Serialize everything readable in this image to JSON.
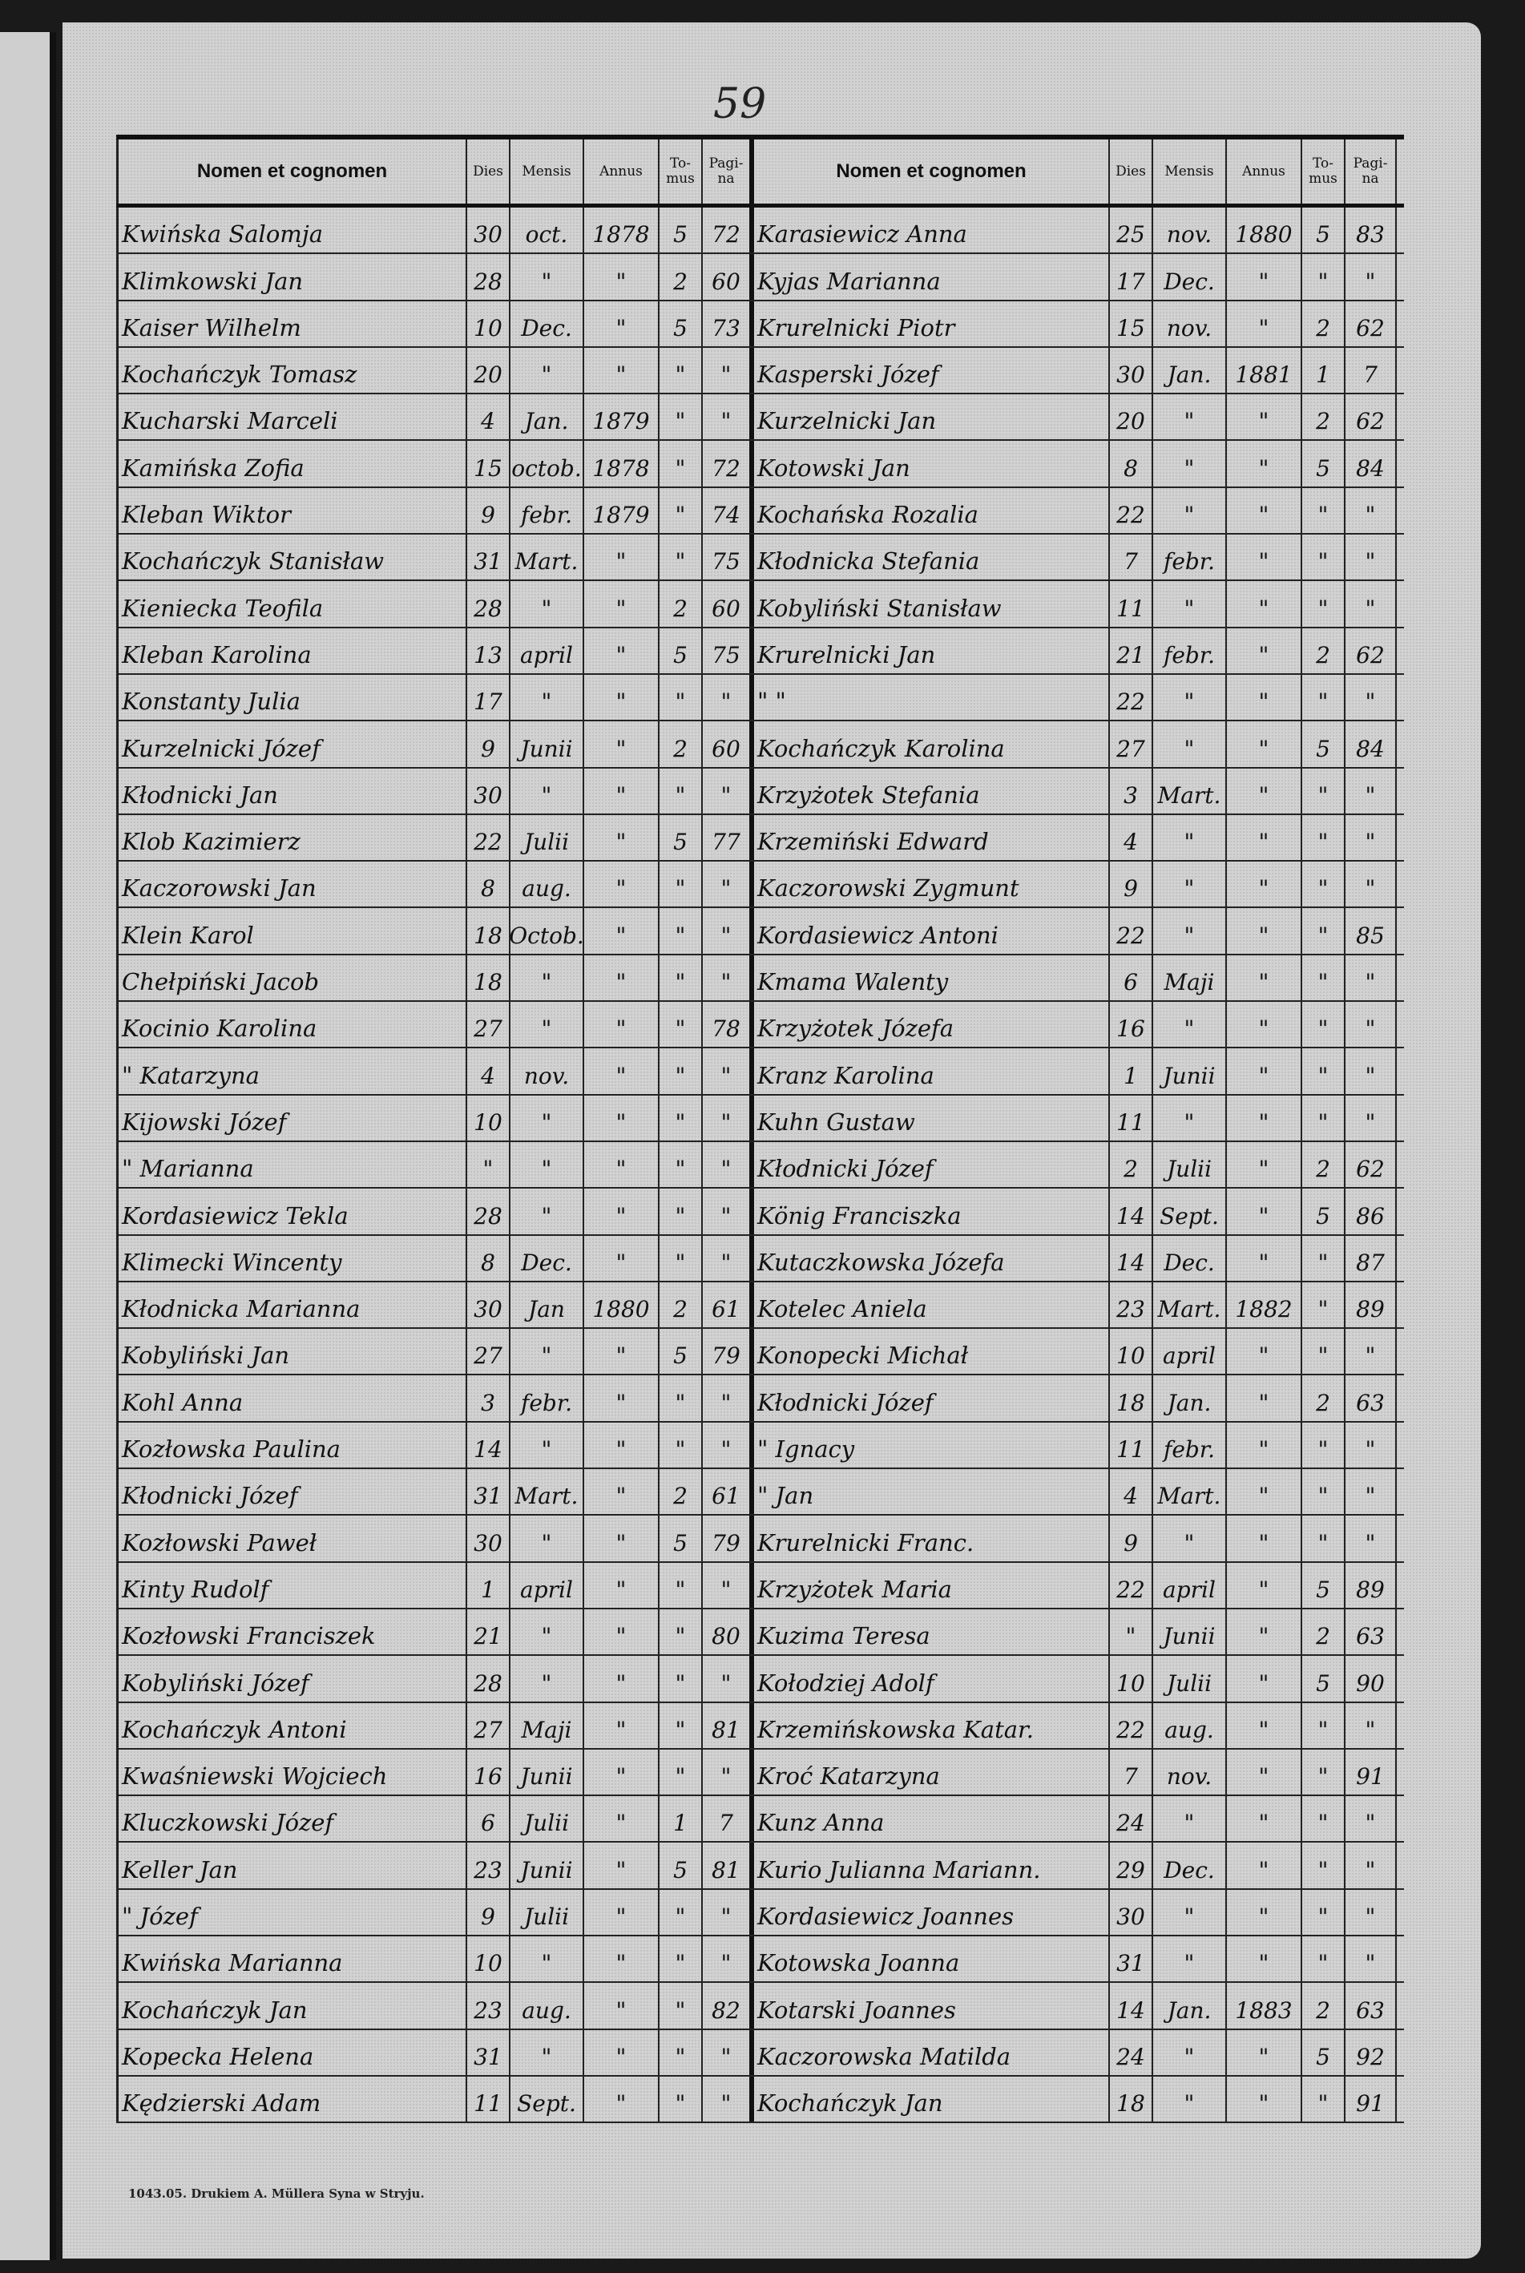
{
  "page_number": "59",
  "headers": [
    "Nomen et cognomen",
    "Dies",
    "Mensis",
    "Annus",
    "To-mus",
    "Pagi-na"
  ],
  "rows": [
    {
      "left": [
        "Kwińska Salomja",
        "30",
        "oct.",
        "1878",
        "5",
        "72"
      ],
      "right": [
        "Karasiewicz Anna",
        "25",
        "nov.",
        "1880",
        "5",
        "83"
      ]
    },
    {
      "left": [
        "Klimkowski Jan",
        "28",
        "\"",
        "\"",
        "2",
        "60"
      ],
      "right": [
        "Kyjas Marianna",
        "17",
        "Dec.",
        "\"",
        "\"",
        "\""
      ]
    },
    {
      "left": [
        "Kaiser Wilhelm",
        "10",
        "Dec.",
        "\"",
        "5",
        "73"
      ],
      "right": [
        "Krurelnicki Piotr",
        "15",
        "nov.",
        "\"",
        "2",
        "62"
      ]
    },
    {
      "left": [
        "Kochańczyk Tomasz",
        "20",
        "\"",
        "\"",
        "\"",
        "\""
      ],
      "right": [
        "Kasperski Józef",
        "30",
        "Jan.",
        "1881",
        "1",
        "7"
      ]
    },
    {
      "left": [
        "Kucharski Marceli",
        "4",
        "Jan.",
        "1879",
        "\"",
        "\""
      ],
      "right": [
        "Kurzelnicki Jan",
        "20",
        "\"",
        "\"",
        "2",
        "62"
      ]
    },
    {
      "left": [
        "Kamińska Zofia",
        "15",
        "octob.",
        "1878",
        "\"",
        "72"
      ],
      "right": [
        "Kotowski Jan",
        "8",
        "\"",
        "\"",
        "5",
        "84"
      ]
    },
    {
      "left": [
        "Kleban Wiktor",
        "9",
        "febr.",
        "1879",
        "\"",
        "74"
      ],
      "right": [
        "Kochańska Rozalia",
        "22",
        "\"",
        "\"",
        "\"",
        "\""
      ]
    },
    {
      "left": [
        "Kochańczyk Stanisław",
        "31",
        "Mart.",
        "\"",
        "\"",
        "75"
      ],
      "right": [
        "Kłodnicka Stefania",
        "7",
        "febr.",
        "\"",
        "\"",
        "\""
      ]
    },
    {
      "left": [
        "Kieniecka Teofila",
        "28",
        "\"",
        "\"",
        "2",
        "60"
      ],
      "right": [
        "Kobyliński Stanisław",
        "11",
        "\"",
        "\"",
        "\"",
        "\""
      ]
    },
    {
      "left": [
        "Kleban Karolina",
        "13",
        "april",
        "\"",
        "5",
        "75"
      ],
      "right": [
        "Krurelnicki Jan",
        "21",
        "febr.",
        "\"",
        "2",
        "62"
      ]
    },
    {
      "left": [
        "Konstanty Julia",
        "17",
        "\"",
        "\"",
        "\"",
        "\""
      ],
      "right": [
        "\"          \"",
        "22",
        "\"",
        "\"",
        "\"",
        "\""
      ]
    },
    {
      "left": [
        "Kurzelnicki Józef",
        "9",
        "Junii",
        "\"",
        "2",
        "60"
      ],
      "right": [
        "Kochańczyk Karolina",
        "27",
        "\"",
        "\"",
        "5",
        "84"
      ]
    },
    {
      "left": [
        "Kłodnicki Jan",
        "30",
        "\"",
        "\"",
        "\"",
        "\""
      ],
      "right": [
        "Krzyżotek Stefania",
        "3",
        "Mart.",
        "\"",
        "\"",
        "\""
      ]
    },
    {
      "left": [
        "Klob Kazimierz",
        "22",
        "Julii",
        "\"",
        "5",
        "77"
      ],
      "right": [
        "Krzemiński Edward",
        "4",
        "\"",
        "\"",
        "\"",
        "\""
      ]
    },
    {
      "left": [
        "Kaczorowski Jan",
        "8",
        "aug.",
        "\"",
        "\"",
        "\""
      ],
      "right": [
        "Kaczorowski Zygmunt",
        "9",
        "\"",
        "\"",
        "\"",
        "\""
      ]
    },
    {
      "left": [
        "Klein Karol",
        "18",
        "Octob.",
        "\"",
        "\"",
        "\""
      ],
      "right": [
        "Kordasiewicz Antoni",
        "22",
        "\"",
        "\"",
        "\"",
        "85"
      ]
    },
    {
      "left": [
        "Chełpiński Jacob",
        "18",
        "\"",
        "\"",
        "\"",
        "\""
      ],
      "right": [
        "Kmama Walenty",
        "6",
        "Maji",
        "\"",
        "\"",
        "\""
      ]
    },
    {
      "left": [
        "Kocinio Karolina",
        "27",
        "\"",
        "\"",
        "\"",
        "78"
      ],
      "right": [
        "Krzyżotek Józefa",
        "16",
        "\"",
        "\"",
        "\"",
        "\""
      ]
    },
    {
      "left": [
        "\"       Katarzyna",
        "4",
        "nov.",
        "\"",
        "\"",
        "\""
      ],
      "right": [
        "Kranz Karolina",
        "1",
        "Junii",
        "\"",
        "\"",
        "\""
      ]
    },
    {
      "left": [
        "Kijowski Józef",
        "10",
        "\"",
        "\"",
        "\"",
        "\""
      ],
      "right": [
        "Kuhn Gustaw",
        "11",
        "\"",
        "\"",
        "\"",
        "\""
      ]
    },
    {
      "left": [
        "\"       Marianna",
        "\"",
        "\"",
        "\"",
        "\"",
        "\""
      ],
      "right": [
        "Kłodnicki Józef",
        "2",
        "Julii",
        "\"",
        "2",
        "62"
      ]
    },
    {
      "left": [
        "Kordasiewicz Tekla",
        "28",
        "\"",
        "\"",
        "\"",
        "\""
      ],
      "right": [
        "König Franciszka",
        "14",
        "Sept.",
        "\"",
        "5",
        "86"
      ]
    },
    {
      "left": [
        "Klimecki Wincenty",
        "8",
        "Dec.",
        "\"",
        "\"",
        "\""
      ],
      "right": [
        "Kutaczkowska Józefa",
        "14",
        "Dec.",
        "\"",
        "\"",
        "87"
      ]
    },
    {
      "left": [
        "Kłodnicka Marianna",
        "30",
        "Jan",
        "1880",
        "2",
        "61"
      ],
      "right": [
        "Kotelec Aniela",
        "23",
        "Mart.",
        "1882",
        "\"",
        "89"
      ]
    },
    {
      "left": [
        "Kobyliński Jan",
        "27",
        "\"",
        "\"",
        "5",
        "79"
      ],
      "right": [
        "Konopecki Michał",
        "10",
        "april",
        "\"",
        "\"",
        "\""
      ]
    },
    {
      "left": [
        "Kohl Anna",
        "3",
        "febr.",
        "\"",
        "\"",
        "\""
      ],
      "right": [
        "Kłodnicki Józef",
        "18",
        "Jan.",
        "\"",
        "2",
        "63"
      ]
    },
    {
      "left": [
        "Kozłowska Paulina",
        "14",
        "\"",
        "\"",
        "\"",
        "\""
      ],
      "right": [
        "\"       Ignacy",
        "11",
        "febr.",
        "\"",
        "\"",
        "\""
      ]
    },
    {
      "left": [
        "Kłodnicki Józef",
        "31",
        "Mart.",
        "\"",
        "2",
        "61"
      ],
      "right": [
        "\"       Jan",
        "4",
        "Mart.",
        "\"",
        "\"",
        "\""
      ]
    },
    {
      "left": [
        "Kozłowski Paweł",
        "30",
        "\"",
        "\"",
        "5",
        "79"
      ],
      "right": [
        "Krurelnicki Franc.",
        "9",
        "\"",
        "\"",
        "\"",
        "\""
      ]
    },
    {
      "left": [
        "Kinty Rudolf",
        "1",
        "april",
        "\"",
        "\"",
        "\""
      ],
      "right": [
        "Krzyżotek Maria",
        "22",
        "april",
        "\"",
        "5",
        "89"
      ]
    },
    {
      "left": [
        "Kozłowski Franciszek",
        "21",
        "\"",
        "\"",
        "\"",
        "80"
      ],
      "right": [
        "Kuzima Teresa",
        "\"",
        "Junii",
        "\"",
        "2",
        "63"
      ]
    },
    {
      "left": [
        "Kobyliński Józef",
        "28",
        "\"",
        "\"",
        "\"",
        "\""
      ],
      "right": [
        "Kołodziej Adolf",
        "10",
        "Julii",
        "\"",
        "5",
        "90"
      ]
    },
    {
      "left": [
        "Kochańczyk Antoni",
        "27",
        "Maji",
        "\"",
        "\"",
        "81"
      ],
      "right": [
        "Krzemińskowska Katar.",
        "22",
        "aug.",
        "\"",
        "\"",
        "\""
      ]
    },
    {
      "left": [
        "Kwaśniewski Wojciech",
        "16",
        "Junii",
        "\"",
        "\"",
        "\""
      ],
      "right": [
        "Kroć Katarzyna",
        "7",
        "nov.",
        "\"",
        "\"",
        "91"
      ]
    },
    {
      "left": [
        "Kluczkowski Józef",
        "6",
        "Julii",
        "\"",
        "1",
        "7"
      ],
      "right": [
        "Kunz Anna",
        "24",
        "\"",
        "\"",
        "\"",
        "\""
      ]
    },
    {
      "left": [
        "Keller Jan",
        "23",
        "Junii",
        "\"",
        "5",
        "81"
      ],
      "right": [
        "Kurio Julianna Mariann.",
        "29",
        "Dec.",
        "\"",
        "\"",
        "\""
      ]
    },
    {
      "left": [
        "\"       Józef",
        "9",
        "Julii",
        "\"",
        "\"",
        "\""
      ],
      "right": [
        "Kordasiewicz Joannes",
        "30",
        "\"",
        "\"",
        "\"",
        "\""
      ]
    },
    {
      "left": [
        "Kwińska Marianna",
        "10",
        "\"",
        "\"",
        "\"",
        "\""
      ],
      "right": [
        "Kotowska Joanna",
        "31",
        "\"",
        "\"",
        "\"",
        "\""
      ]
    },
    {
      "left": [
        "Kochańczyk Jan",
        "23",
        "aug.",
        "\"",
        "\"",
        "82"
      ],
      "right": [
        "Kotarski Joannes",
        "14",
        "Jan.",
        "1883",
        "2",
        "63"
      ]
    },
    {
      "left": [
        "Kopecka Helena",
        "31",
        "\"",
        "\"",
        "\"",
        "\""
      ],
      "right": [
        "Kaczorowska Matilda",
        "24",
        "\"",
        "\"",
        "5",
        "92"
      ]
    },
    {
      "left": [
        "Kędzierski Adam",
        "11",
        "Sept.",
        "\"",
        "\"",
        "\""
      ],
      "right": [
        "Kochańczyk Jan",
        "18",
        "\"",
        "\"",
        "\"",
        "91"
      ]
    }
  ],
  "footer": "1043.05. Drukiem A. Müllera Syna w Stryju."
}
